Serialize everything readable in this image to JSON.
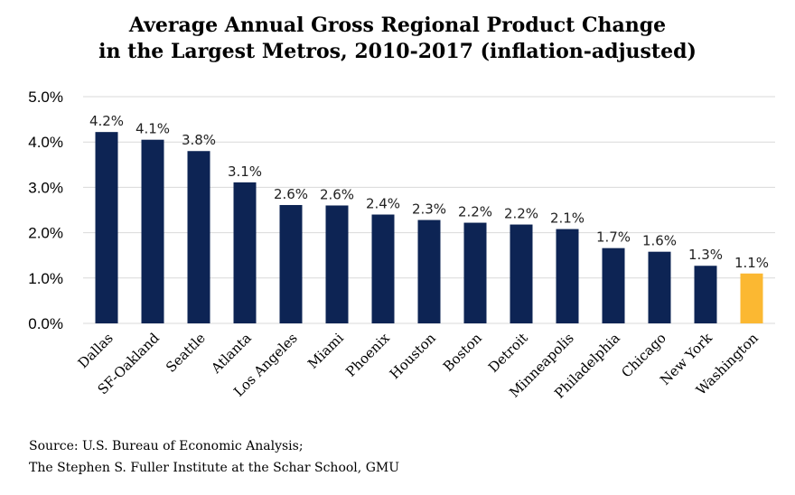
{
  "chart_data": {
    "type": "bar",
    "title": [
      "Average Annual Gross Regional Product Change",
      "in the Largest Metros, 2010-2017 (inflation-adjusted)"
    ],
    "categories": [
      "Dallas",
      "SF-Oakland",
      "Seattle",
      "Atlanta",
      "Los Angeles",
      "Miami",
      "Phoenix",
      "Houston",
      "Boston",
      "Detroit",
      "Minneapolis",
      "Philadelphia",
      "Chicago",
      "New York",
      "Washington"
    ],
    "values": [
      4.2,
      4.1,
      3.8,
      3.1,
      2.6,
      2.6,
      2.4,
      2.3,
      2.2,
      2.2,
      2.1,
      1.7,
      1.6,
      1.3,
      1.1
    ],
    "plotted_values": [
      4.22,
      4.05,
      3.8,
      3.11,
      2.61,
      2.6,
      2.4,
      2.28,
      2.22,
      2.18,
      2.08,
      1.66,
      1.58,
      1.27,
      1.1
    ],
    "data_labels": [
      "4.2%",
      "4.1%",
      "3.8%",
      "3.1%",
      "2.6%",
      "2.6%",
      "2.4%",
      "2.3%",
      "2.2%",
      "2.2%",
      "2.1%",
      "1.7%",
      "1.6%",
      "1.3%",
      "1.1%"
    ],
    "ylim": [
      0,
      5
    ],
    "yticks": [
      0,
      1,
      2,
      3,
      4,
      5
    ],
    "ytick_labels": [
      "0.0%",
      "1.0%",
      "2.0%",
      "3.0%",
      "4.0%",
      "5.0%"
    ],
    "grid": true,
    "colors": {
      "default": "#0d2454",
      "highlight": "#fbb832",
      "grid": "#d9d9d9"
    },
    "highlight_category": "Washington",
    "source": [
      "Source: U.S. Bureau of Economic Analysis;",
      "The Stephen S. Fuller Institute at the Schar School, GMU"
    ]
  }
}
